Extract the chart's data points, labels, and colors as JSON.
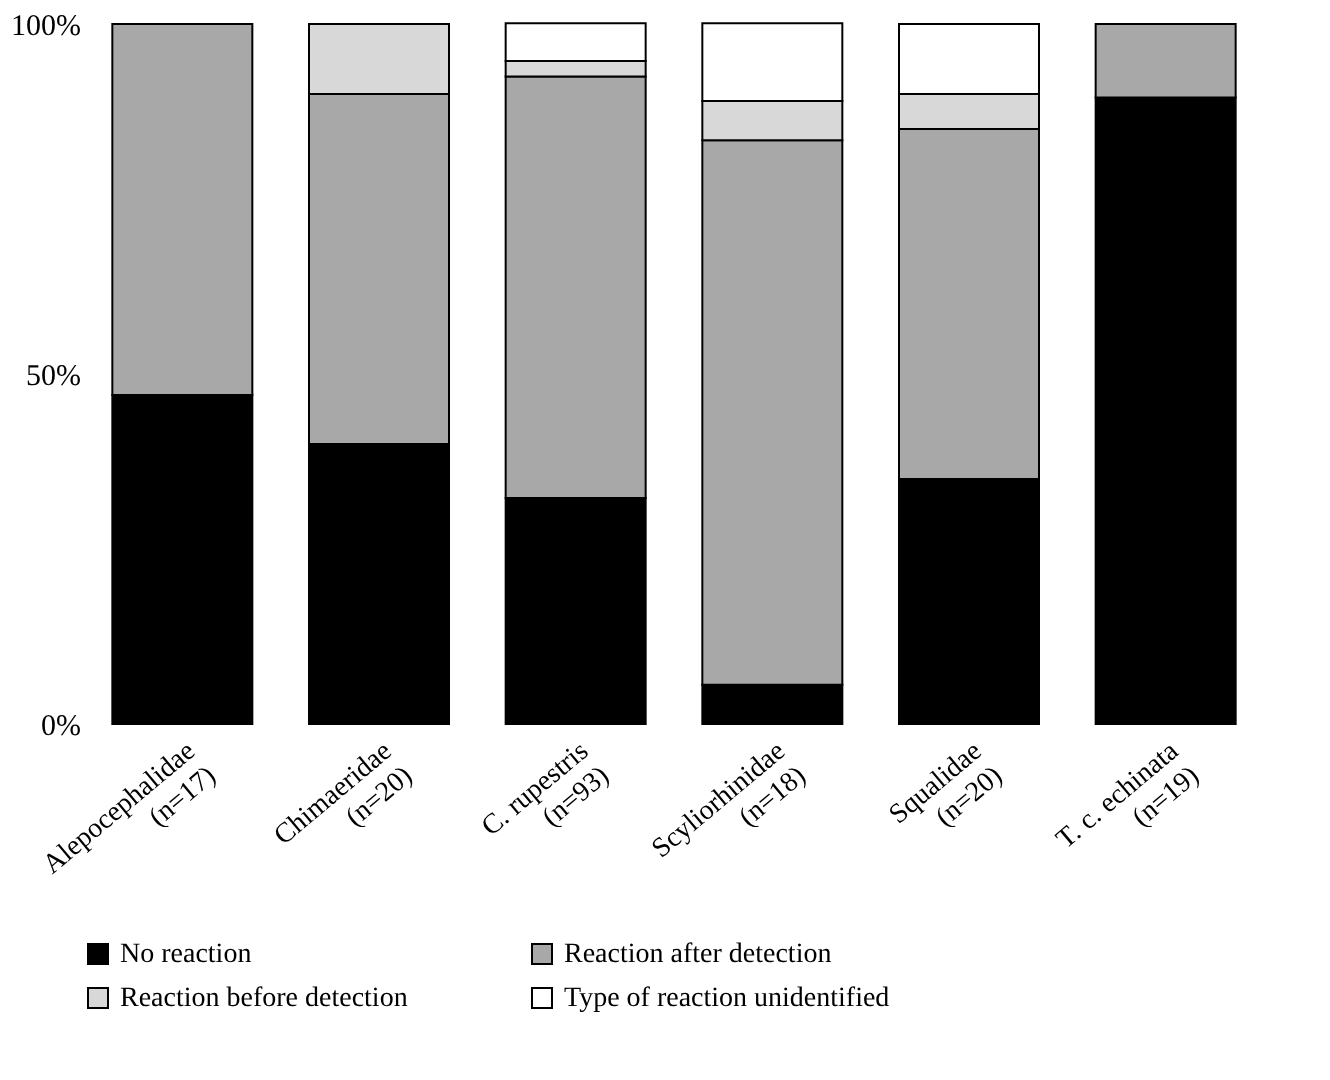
{
  "chart_data": {
    "type": "bar",
    "stacked": true,
    "categories": [
      "Alepocephalidae\n(n=17)",
      "Chimaeridae\n(n=20)",
      "C. rupestris\n(n=93)",
      "Scyliorhinidae\n(n=18)",
      "Squalidae\n(n=20)",
      "T. c. echinata\n(n=19)"
    ],
    "series": [
      {
        "name": "No reaction",
        "color": "#000000",
        "values": [
          47,
          40,
          32.3,
          5.6,
          35,
          89.5
        ]
      },
      {
        "name": "Reaction after detection",
        "color": "#a8a8a8",
        "values": [
          53,
          50,
          60.2,
          77.8,
          50,
          10.5
        ]
      },
      {
        "name": "Reaction before detection",
        "color": "#d8d8d8",
        "values": [
          0,
          10,
          2.2,
          5.6,
          5,
          0
        ]
      },
      {
        "name": "Type of reaction unidentified",
        "color": "#ffffff",
        "values": [
          0,
          0,
          5.4,
          11.1,
          10,
          0
        ]
      }
    ],
    "ylim": [
      0,
      100
    ],
    "yticks": [
      {
        "value": 0,
        "label": "0%"
      },
      {
        "value": 50,
        "label": "50%"
      },
      {
        "value": 100,
        "label": "100%"
      }
    ],
    "grid": false,
    "legend": "bottom"
  }
}
